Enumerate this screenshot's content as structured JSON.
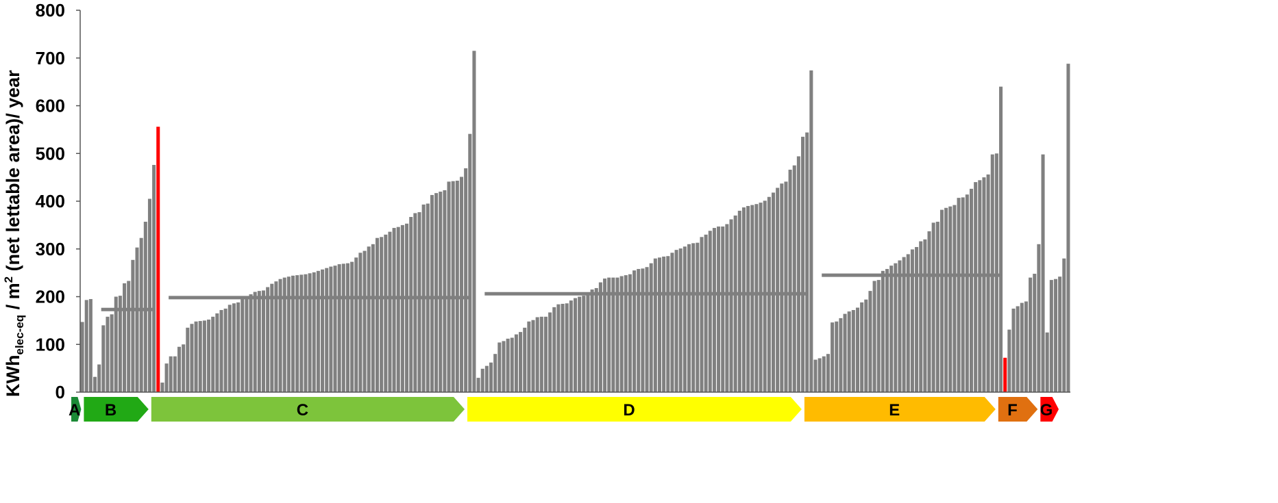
{
  "chart_data": {
    "type": "bar",
    "ylabel": {
      "prefix": "KWh",
      "subscript": "elec-eq",
      "middle": " / m",
      "superscript": "2",
      "suffix": " (net lettable  area)/ year"
    },
    "ylim": [
      0,
      800
    ],
    "yticks": [
      "0",
      "100",
      "200",
      "300",
      "400",
      "500",
      "600",
      "700",
      "800"
    ],
    "grid": false,
    "legend": "none",
    "default_bar_color": "#808080",
    "highlight_color": "#ff0000",
    "groups": [
      {
        "label": "A",
        "color": "#1b8a36",
        "values": [
          147,
          193,
          195
        ]
      },
      {
        "label": "B",
        "color": "#21a915",
        "values": [
          32,
          58,
          140,
          158,
          163,
          200,
          202,
          228,
          233,
          277,
          303,
          323,
          357,
          405,
          476,
          556
        ],
        "highlight_index": 15,
        "mean": 173
      },
      {
        "label": "C",
        "color": "#7dc43b",
        "values": [
          20,
          60,
          75,
          75,
          95,
          100,
          135,
          143,
          148,
          149,
          150,
          152,
          158,
          165,
          172,
          175,
          183,
          186,
          188,
          196,
          201,
          205,
          210,
          212,
          213,
          220,
          227,
          232,
          237,
          240,
          242,
          244,
          245,
          246,
          247,
          249,
          251,
          254,
          257,
          260,
          263,
          265,
          268,
          269,
          270,
          273,
          282,
          292,
          296,
          305,
          310,
          323,
          325,
          330,
          336,
          344,
          346,
          350,
          353,
          367,
          375,
          377,
          393,
          395,
          413,
          417,
          420,
          423,
          441,
          442,
          443,
          451,
          469,
          541,
          715
        ],
        "mean": 198
      },
      {
        "label": "D",
        "color": "#ffff00",
        "values": [
          30,
          49,
          55,
          62,
          80,
          104,
          107,
          112,
          114,
          121,
          126,
          135,
          148,
          151,
          157,
          158,
          158,
          167,
          178,
          184,
          185,
          186,
          192,
          197,
          200,
          202,
          208,
          215,
          218,
          230,
          238,
          240,
          240,
          240,
          243,
          245,
          247,
          255,
          258,
          259,
          262,
          270,
          280,
          282,
          284,
          285,
          292,
          298,
          301,
          305,
          310,
          312,
          313,
          325,
          330,
          338,
          344,
          347,
          347,
          352,
          362,
          370,
          380,
          387,
          390,
          392,
          394,
          397,
          401,
          409,
          418,
          428,
          437,
          441,
          466,
          475,
          494,
          535,
          544,
          674
        ],
        "mean": 206
      },
      {
        "label": "E",
        "color": "#ffbb00",
        "values": [
          68,
          71,
          75,
          80,
          146,
          148,
          155,
          164,
          169,
          172,
          177,
          188,
          194,
          212,
          233,
          235,
          254,
          258,
          265,
          270,
          276,
          283,
          289,
          299,
          304,
          316,
          320,
          337,
          355,
          357,
          382,
          386,
          389,
          392,
          407,
          408,
          414,
          426,
          440,
          444,
          450,
          456,
          498,
          500,
          640,
          72
        ],
        "highlight_index": 45,
        "mean": 245
      },
      {
        "label": "F",
        "color": "#e07010",
        "values": [
          131,
          175,
          180,
          187,
          190,
          240,
          248,
          310,
          498,
          125
        ]
      },
      {
        "label": "G",
        "color": "#ff0000",
        "values": [
          235,
          237,
          242,
          280,
          688
        ]
      }
    ]
  }
}
